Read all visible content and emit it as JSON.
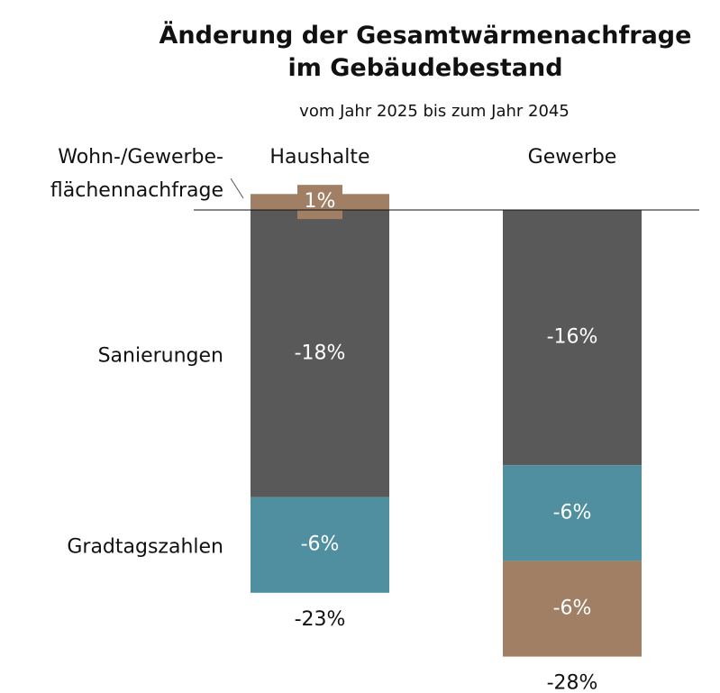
{
  "chart_data": {
    "type": "stacked_bar",
    "title": "Änderung der Gesamtwärmenachfrage\nim Gebäudebestand",
    "subtitle": "vom Jahr 2025 bis zum Jahr 2045",
    "categories": [
      "Haushalte",
      "Gewerbe"
    ],
    "series": [
      {
        "name": "Sanierungen",
        "color": "#595959",
        "values": [
          -18,
          -16
        ],
        "value_labels": [
          "-18%",
          "-16%"
        ]
      },
      {
        "name": "Gradtagszahlen",
        "color": "#4f8fa0",
        "values": [
          -6,
          -6
        ],
        "value_labels": [
          "-6%",
          "-6%"
        ]
      },
      {
        "name": "Wohn-/Gewerbe-\nflächennachfrage",
        "color": "#a07f64",
        "values": [
          1,
          -6
        ],
        "value_labels": [
          "1%",
          "-6%"
        ]
      }
    ],
    "totals": [
      -23,
      -28
    ],
    "total_labels": [
      "-23%",
      "-28%"
    ]
  }
}
